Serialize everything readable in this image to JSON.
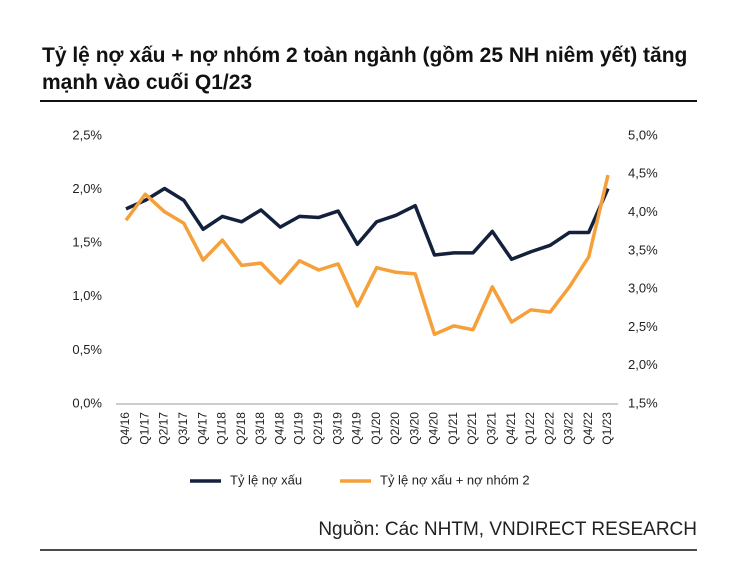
{
  "chart_data": {
    "type": "line",
    "title": "Tỷ lệ nợ xấu + nợ nhóm 2 toàn ngành (gồm 25 NH niêm yết) tăng mạnh vào cuối Q1/23",
    "source": "Nguồn: Các NHTM, VNDIRECT RESEARCH",
    "categories": [
      "Q4/16",
      "Q1/17",
      "Q2/17",
      "Q3/17",
      "Q4/17",
      "Q1/18",
      "Q2/18",
      "Q3/18",
      "Q4/18",
      "Q1/19",
      "Q2/19",
      "Q3/19",
      "Q4/19",
      "Q1/20",
      "Q2/20",
      "Q3/20",
      "Q4/20",
      "Q1/21",
      "Q2/21",
      "Q3/21",
      "Q4/21",
      "Q1/22",
      "Q2/22",
      "Q3/22",
      "Q4/22",
      "Q1/23"
    ],
    "series": [
      {
        "name": "Tỷ lệ nợ xấu",
        "color": "#14213d",
        "values": [
          1.82,
          1.9,
          2.01,
          1.9,
          1.63,
          1.75,
          1.7,
          1.81,
          1.65,
          1.75,
          1.74,
          1.8,
          1.49,
          1.7,
          1.76,
          1.85,
          1.39,
          1.41,
          1.41,
          1.61,
          1.35,
          1.42,
          1.48,
          1.6,
          1.6,
          2.01
        ]
      },
      {
        "name": "Tỷ lệ nợ xấu + nợ nhóm 2",
        "color": "#f5a03a",
        "axis": "y2",
        "values": [
          3.9,
          4.24,
          4.01,
          3.86,
          3.38,
          3.64,
          3.31,
          3.34,
          3.08,
          3.37,
          3.25,
          3.33,
          2.78,
          3.28,
          3.22,
          3.2,
          2.41,
          2.52,
          2.47,
          3.03,
          2.57,
          2.73,
          2.7,
          3.03,
          3.42,
          4.49
        ]
      }
    ],
    "ylim": [
      0,
      2.5
    ],
    "yticks": [
      {
        "value": 0,
        "label": "0,0%"
      },
      {
        "value": 0.5,
        "label": "0,5%"
      },
      {
        "value": 1,
        "label": "1,0%"
      },
      {
        "value": 1.5,
        "label": "1,5%"
      },
      {
        "value": 2,
        "label": "2,0%"
      },
      {
        "value": 2.5,
        "label": "2,5%"
      }
    ],
    "y2lim": [
      1.5,
      5
    ],
    "y2ticks": [
      {
        "value": 1.5,
        "label": "1,5%"
      },
      {
        "value": 2,
        "label": "2,0%"
      },
      {
        "value": 2.5,
        "label": "2,5%"
      },
      {
        "value": 3,
        "label": "3,0%"
      },
      {
        "value": 3.5,
        "label": "3,5%"
      },
      {
        "value": 4,
        "label": "4,0%"
      },
      {
        "value": 4.5,
        "label": "4,5%"
      },
      {
        "value": 5,
        "label": "5,0%"
      }
    ],
    "grid": false,
    "legend": "bottom"
  }
}
